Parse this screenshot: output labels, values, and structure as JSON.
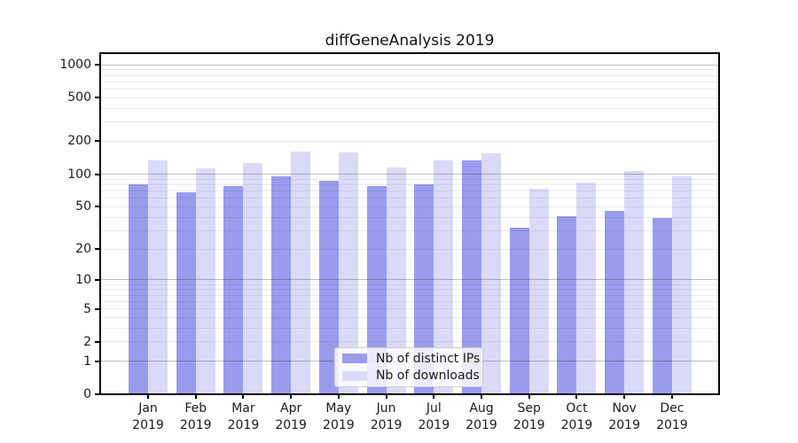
{
  "title": "diffGeneAnalysis 2019",
  "chart_data": {
    "type": "bar",
    "title": "diffGeneAnalysis 2019",
    "yscale": "log1p",
    "ylim": [
      0,
      1275
    ],
    "y_ticks": [
      0,
      1,
      2,
      5,
      10,
      20,
      50,
      100,
      200,
      500,
      1000
    ],
    "grid": true,
    "categories": [
      "Jan 2019",
      "Feb 2019",
      "Mar 2019",
      "Apr 2019",
      "May 2019",
      "Jun 2019",
      "Jul 2019",
      "Aug 2019",
      "Sep 2019",
      "Oct 2019",
      "Nov 2019",
      "Dec 2019"
    ],
    "x_tick_line1": [
      "Jan",
      "Feb",
      "Mar",
      "Apr",
      "May",
      "Jun",
      "Jul",
      "Aug",
      "Sep",
      "Oct",
      "Nov",
      "Dec"
    ],
    "x_tick_line2": "2019",
    "series": [
      {
        "name": "Nb of distinct IPs",
        "color": "#9b9bee",
        "values": [
          80,
          68,
          77,
          95,
          87,
          77,
          81,
          135,
          32,
          41,
          46,
          39
        ]
      },
      {
        "name": "Nb of downloads",
        "color": "#dadaf8",
        "values": [
          135,
          113,
          127,
          160,
          158,
          115,
          133,
          156,
          74,
          84,
          106,
          95
        ]
      }
    ],
    "legend": {
      "position": "lower center",
      "entries": [
        {
          "label": "Nb of distinct IPs",
          "color": "#9b9bee"
        },
        {
          "label": "Nb of downloads",
          "color": "#dadaf8"
        }
      ]
    },
    "colors": {
      "grid_major": "#c0c0c0",
      "grid_minor": "#ebebeb",
      "axis": "#000000",
      "background": "#ffffff"
    }
  }
}
